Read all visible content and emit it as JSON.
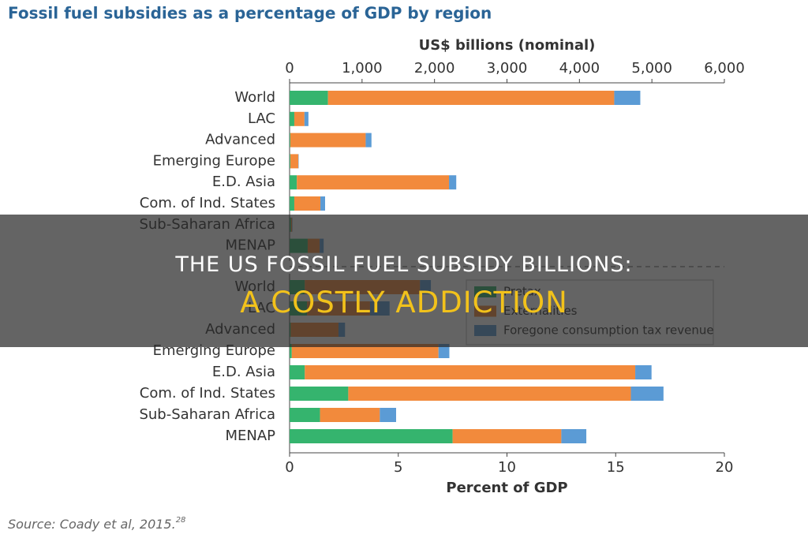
{
  "chart_data": [
    {
      "type": "bar",
      "orientation": "horizontal",
      "stacked": true,
      "title": "Fossil fuel subsidies as a percentage of GDP by region",
      "x_label": "US$ billions (nominal)",
      "x_axis_position": "top",
      "categories": [
        "World",
        "LAC",
        "Advanced",
        "Emerging Europe",
        "E.D. Asia",
        "Com. of Ind. States",
        "Sub-Saharan Africa",
        "MENAP"
      ],
      "series": [
        {
          "color": "#35b46e",
          "values": [
            530,
            65,
            10,
            10,
            100,
            65,
            20,
            250
          ]
        },
        {
          "color": "#f28a3c",
          "values": [
            3950,
            140,
            1040,
            110,
            2100,
            360,
            15,
            165
          ]
        },
        {
          "color": "#5b9bd5",
          "values": [
            360,
            55,
            80,
            5,
            100,
            65,
            5,
            55
          ]
        }
      ],
      "xlim": [
        0,
        6000
      ],
      "xticks": [
        0,
        {
          "value": 1000,
          "label": "1,000"
        },
        {
          "value": 2000,
          "label": "2,000"
        },
        {
          "value": 3000,
          "label": "3,000"
        },
        {
          "value": 4000,
          "label": "4,000"
        },
        {
          "value": 5000,
          "label": "5,000"
        },
        {
          "value": 6000,
          "label": "6,000"
        }
      ]
    },
    {
      "type": "bar",
      "orientation": "horizontal",
      "stacked": true,
      "x_label": "Percent of GDP",
      "x_axis_position": "bottom",
      "categories": [
        "World",
        "LAC",
        "Advanced",
        "Emerging Europe",
        "E.D. Asia",
        "Com. of Ind. States",
        "Sub-Saharan Africa",
        "MENAP"
      ],
      "series": [
        {
          "name": "Pretax",
          "color": "#35b46e",
          "values": [
            0.7,
            0.8,
            0.05,
            0.1,
            0.7,
            2.7,
            1.4,
            7.5
          ]
        },
        {
          "name": "Externalities",
          "color": "#f28a3c",
          "values": [
            5.3,
            2.9,
            2.2,
            6.75,
            15.2,
            13.0,
            2.75,
            5.0
          ]
        },
        {
          "name": "Foregone consumption tax revenue",
          "color": "#5b9bd5",
          "values": [
            0.5,
            0.9,
            0.3,
            0.5,
            0.75,
            1.5,
            0.75,
            1.15
          ]
        }
      ],
      "xlim": [
        0,
        20
      ],
      "xticks": [
        0,
        5,
        10,
        15,
        20
      ],
      "legend": "upper right"
    }
  ],
  "source": "Source: Coady et al, 2015.",
  "source_note": "28",
  "banner": {
    "title": "THE US FOSSIL FUEL SUBSIDY BILLIONS:",
    "subtitle": "A COSTLY ADDICTION"
  }
}
